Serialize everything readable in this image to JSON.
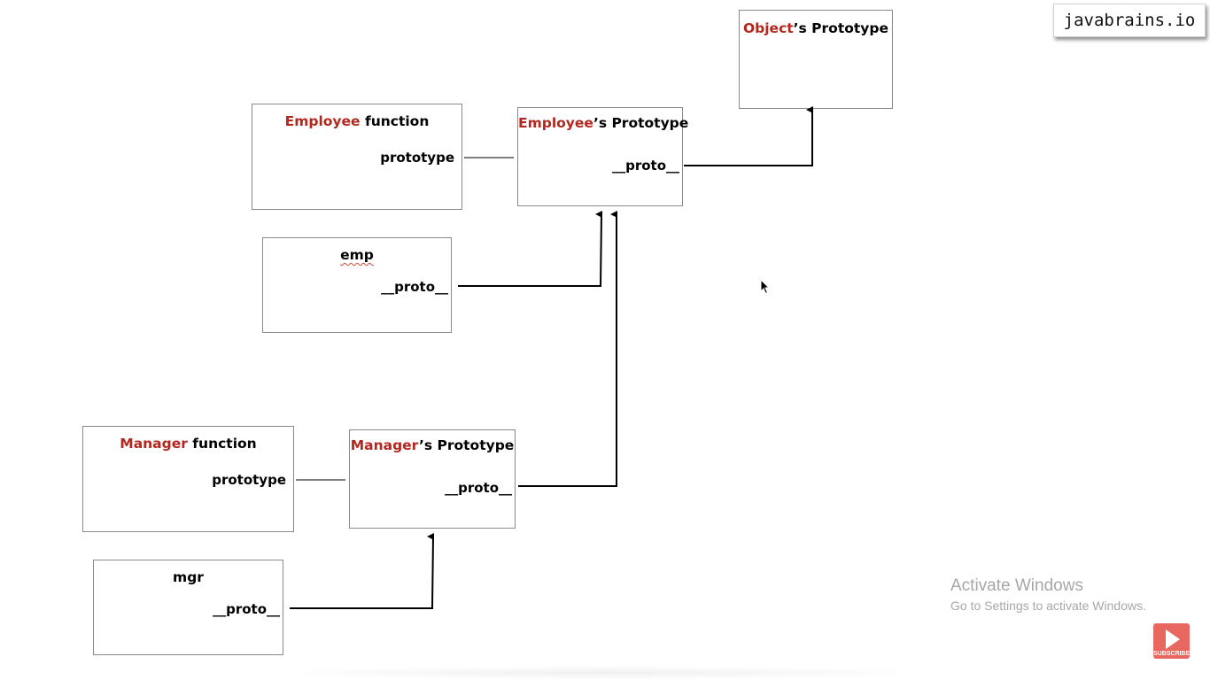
{
  "colors": {
    "accent": "#b3271e",
    "line": "#000000",
    "box_border": "#8a8a8a"
  },
  "brand": {
    "text": "javabrains.io"
  },
  "nodes": {
    "object_proto": {
      "title_red": "Object",
      "title_rest": "’s Prototype"
    },
    "employee_fn": {
      "title_red": "Employee",
      "title_rest": " function",
      "field": "prototype"
    },
    "employee_proto": {
      "title_red": "Employee",
      "title_rest": "’s Prototype",
      "field": "__proto__"
    },
    "emp": {
      "title": "emp",
      "field": "__proto__"
    },
    "manager_fn": {
      "title_red": "Manager",
      "title_rest": " function",
      "field": "prototype"
    },
    "manager_proto": {
      "title_red": "Manager",
      "title_rest": "’s Prototype",
      "field": "__proto__"
    },
    "mgr": {
      "title": "mgr",
      "field": "__proto__"
    }
  },
  "watermark": {
    "line1": "Activate Windows",
    "line2": "Go to Settings to activate Windows."
  },
  "subscribe": {
    "label": "SUBSCRIBE",
    "icon": "play-icon"
  },
  "cursor": {
    "icon": "mouse-pointer-icon"
  }
}
